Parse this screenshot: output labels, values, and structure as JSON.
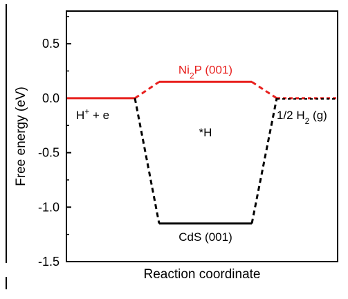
{
  "chart_data": {
    "type": "line",
    "xlabel": "Reaction coordinate",
    "ylabel": "Free energy (eV)",
    "ylim": [
      -1.5,
      0.8
    ],
    "y_ticks": [
      "0.5",
      "0.0",
      "-0.5",
      "-1.0",
      "-1.5"
    ],
    "y_tick_values": [
      0.5,
      0.0,
      -0.5,
      -1.0,
      -1.5
    ],
    "grid": false,
    "states": [
      "H+ + e",
      "*H",
      "1/2 H2 (g)"
    ],
    "series": [
      {
        "name": "Ni2P (001)",
        "color": "#e8201e",
        "values": [
          0.0,
          0.15,
          0.0
        ]
      },
      {
        "name": "CdS (001)",
        "color": "#000000",
        "values": [
          0.0,
          -1.15,
          0.0
        ]
      }
    ],
    "annotations": {
      "initial_state": {
        "main": "H",
        "sup": "+",
        "rest": " + e"
      },
      "intermediate": "*H",
      "final_state": {
        "main": "1/2 H",
        "sub": "2",
        "rest": " (g)"
      },
      "ni2p_label": {
        "a": "Ni",
        "sub": "2",
        "b": "P (001)"
      },
      "cds_label": "CdS (001)"
    }
  }
}
